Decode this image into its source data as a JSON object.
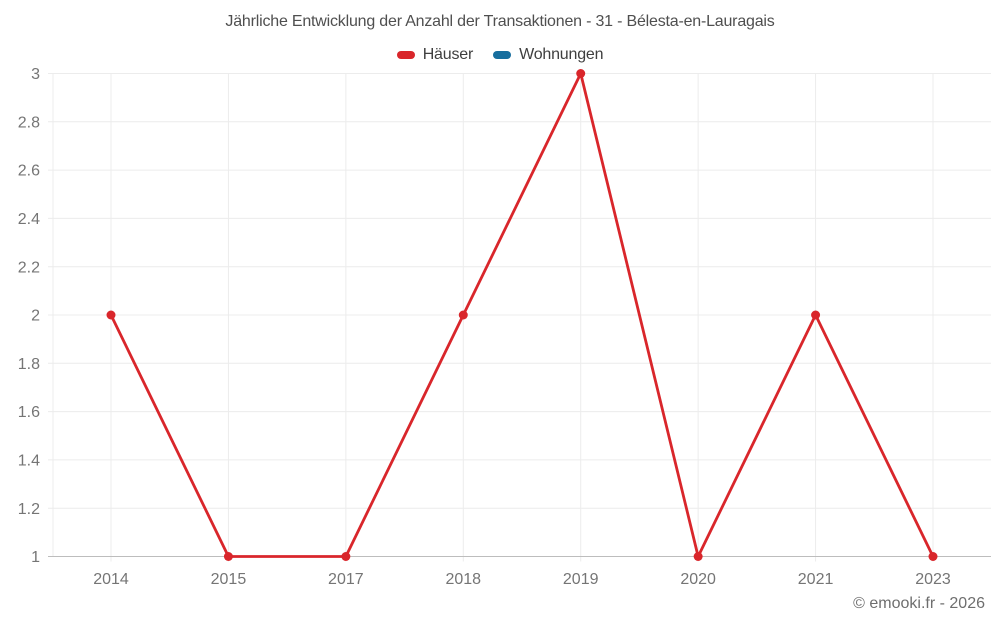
{
  "title": "Jährliche Entwicklung der Anzahl der Transaktionen - 31 - Bélesta-en-Lauragais",
  "legend": [
    {
      "label": "Häuser",
      "color": "#d9262b"
    },
    {
      "label": "Wohnungen",
      "color": "#176e9e"
    }
  ],
  "footer": "© emooki.fr - 2026",
  "colors": {
    "background": "#ffffff",
    "grid": "#ececec",
    "axis": "#bdbdbd",
    "tick_label": "#757575",
    "title": "#4f4f4f",
    "legend_label": "#3f3f3f",
    "footer": "#6e6e6e"
  },
  "chart_data": {
    "type": "line",
    "title": "Jährliche Entwicklung der Anzahl der Transaktionen - 31 - Bélesta-en-Lauragais",
    "categories": [
      "2014",
      "2015",
      "2017",
      "2018",
      "2019",
      "2020",
      "2021",
      "2023"
    ],
    "series": [
      {
        "name": "Häuser",
        "color": "#d9262b",
        "values": [
          2,
          1,
          1,
          2,
          3,
          1,
          2,
          1
        ]
      },
      {
        "name": "Wohnungen",
        "color": "#176e9e",
        "values": []
      }
    ],
    "xlabel": "",
    "ylabel": "",
    "ylim": [
      1,
      3
    ],
    "ytick_step": 0.2,
    "grid": true,
    "legend_position": "top",
    "marker_radius": 4.5,
    "line_width": 2.8
  }
}
